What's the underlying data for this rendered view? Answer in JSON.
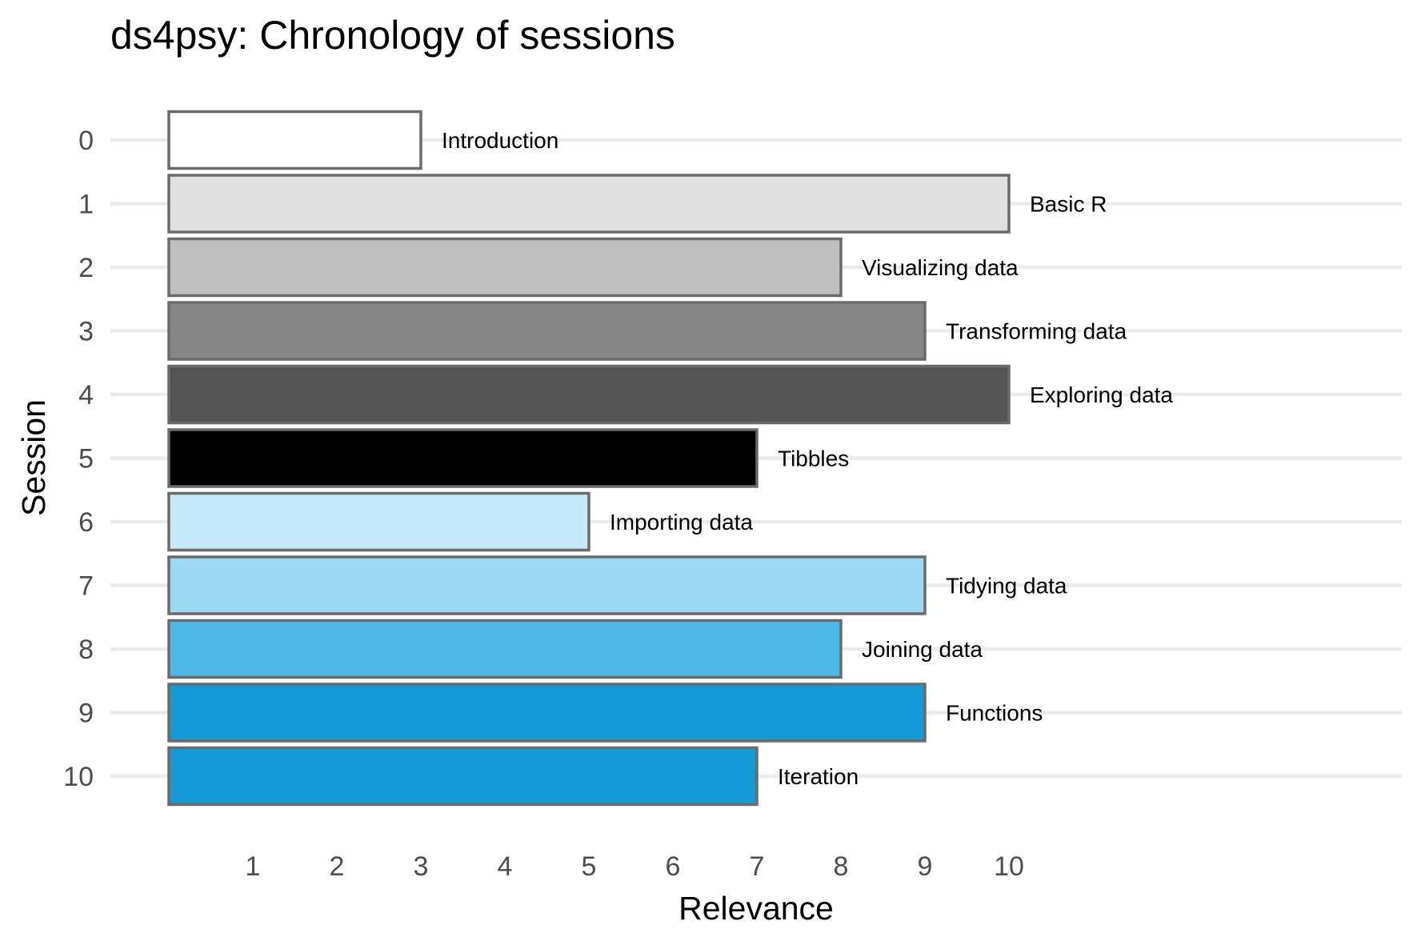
{
  "chart_data": {
    "type": "bar",
    "orientation": "horizontal",
    "title": "ds4psy: Chronology of sessions",
    "xlabel": "Relevance",
    "ylabel": "Session",
    "xlim": [
      0,
      14
    ],
    "x_ticks": [
      "1",
      "2",
      "3",
      "4",
      "5",
      "6",
      "7",
      "8",
      "9",
      "10"
    ],
    "grid": "horizontal major gridlines only",
    "legend": "none",
    "categories": [
      "0",
      "1",
      "2",
      "3",
      "4",
      "5",
      "6",
      "7",
      "8",
      "9",
      "10"
    ],
    "values": [
      3,
      10,
      8,
      9,
      10,
      7,
      5,
      9,
      8,
      9,
      7
    ],
    "labels": [
      "Introduction",
      "Basic R",
      "Visualizing data",
      "Transforming data",
      "Exploring data",
      "Tibbles",
      "Importing data",
      "Tidying data",
      "Joining data",
      "Functions",
      "Iteration"
    ],
    "colors": [
      "#ffffff",
      "#e0e0e0",
      "#bfbfbf",
      "#868686",
      "#545454",
      "#000000",
      "#c6eaf8",
      "#9bdaf1",
      "#4eb9e6",
      "#139ad7",
      "#139ad7"
    ]
  }
}
